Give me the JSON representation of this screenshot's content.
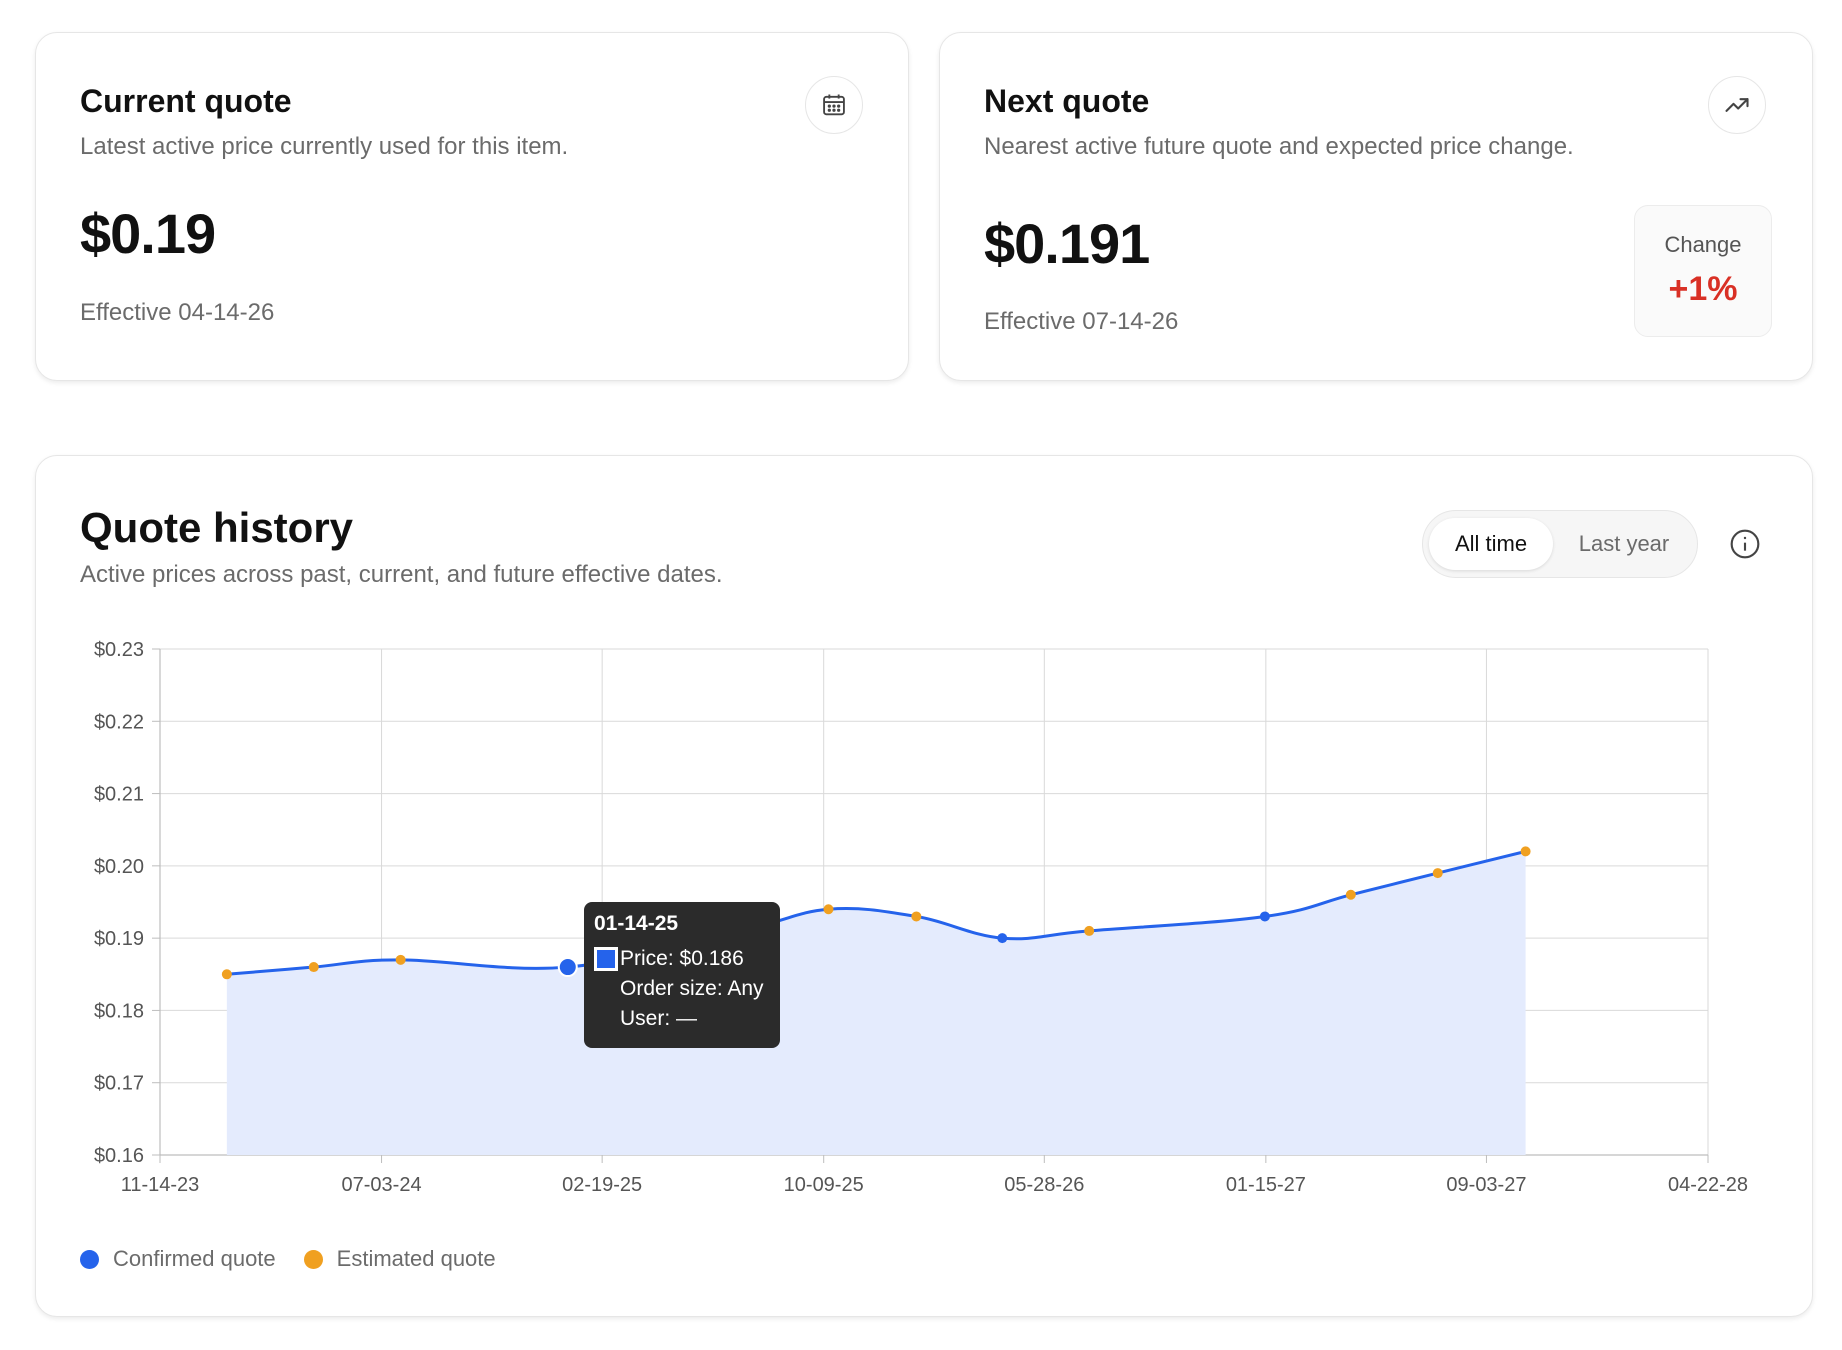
{
  "current_quote": {
    "title": "Current quote",
    "subtitle": "Latest active price currently used for this item.",
    "price": "$0.19",
    "effective": "Effective 04-14-26",
    "icon": "calendar-icon"
  },
  "next_quote": {
    "title": "Next quote",
    "subtitle": "Nearest active future quote and expected price change.",
    "price": "$0.191",
    "effective": "Effective 07-14-26",
    "icon": "trending-up-icon",
    "change_label": "Change",
    "change_value": "+1%"
  },
  "history": {
    "title": "Quote history",
    "subtitle": "Active prices across past, current, and future effective dates.",
    "toggle_options": [
      "All time",
      "Last year"
    ],
    "toggle_selected": "All time",
    "info_icon": "info-icon"
  },
  "tooltip": {
    "date": "01-14-25",
    "price": "Price: $0.186",
    "order_size": "Order size: Any",
    "user": "User: —"
  },
  "colors": {
    "confirmed": "#2563eb",
    "estimated": "#f0a020",
    "area_fill": "#e4ebfd",
    "change_positive": "#d93025"
  },
  "chart_data": {
    "type": "area",
    "x_ticks": [
      "11-14-23",
      "07-03-24",
      "02-19-25",
      "10-09-25",
      "05-28-26",
      "01-15-27",
      "09-03-27",
      "04-22-28"
    ],
    "y_ticks": [
      "$0.23",
      "$0.22",
      "$0.21",
      "$0.20",
      "$0.19",
      "$0.18",
      "$0.17",
      "$0.16"
    ],
    "ylim": [
      0.16,
      0.23
    ],
    "xlim": [
      "11-14-23",
      "04-22-28"
    ],
    "grid": true,
    "legend": [
      {
        "name": "Confirmed quote",
        "color": "#2563eb"
      },
      {
        "name": "Estimated quote",
        "color": "#f0a020"
      }
    ],
    "legend_position": "bottom-left",
    "points": [
      {
        "date": "2024-01-23",
        "value": 0.185,
        "type": "estimated"
      },
      {
        "date": "2024-04-23",
        "value": 0.186,
        "type": "estimated"
      },
      {
        "date": "2024-07-23",
        "value": 0.187,
        "type": "estimated"
      },
      {
        "date": "2025-01-14",
        "value": 0.186,
        "type": "confirmed"
      },
      {
        "date": "2025-07-14",
        "value": 0.191,
        "type": "confirmed"
      },
      {
        "date": "2025-10-14",
        "value": 0.194,
        "type": "estimated"
      },
      {
        "date": "2026-01-14",
        "value": 0.193,
        "type": "estimated"
      },
      {
        "date": "2026-04-14",
        "value": 0.19,
        "type": "confirmed"
      },
      {
        "date": "2026-07-14",
        "value": 0.191,
        "type": "estimated"
      },
      {
        "date": "2027-01-14",
        "value": 0.193,
        "type": "confirmed"
      },
      {
        "date": "2027-04-14",
        "value": 0.196,
        "type": "estimated"
      },
      {
        "date": "2027-07-14",
        "value": 0.199,
        "type": "estimated"
      },
      {
        "date": "2027-10-14",
        "value": 0.202,
        "type": "estimated"
      }
    ]
  }
}
